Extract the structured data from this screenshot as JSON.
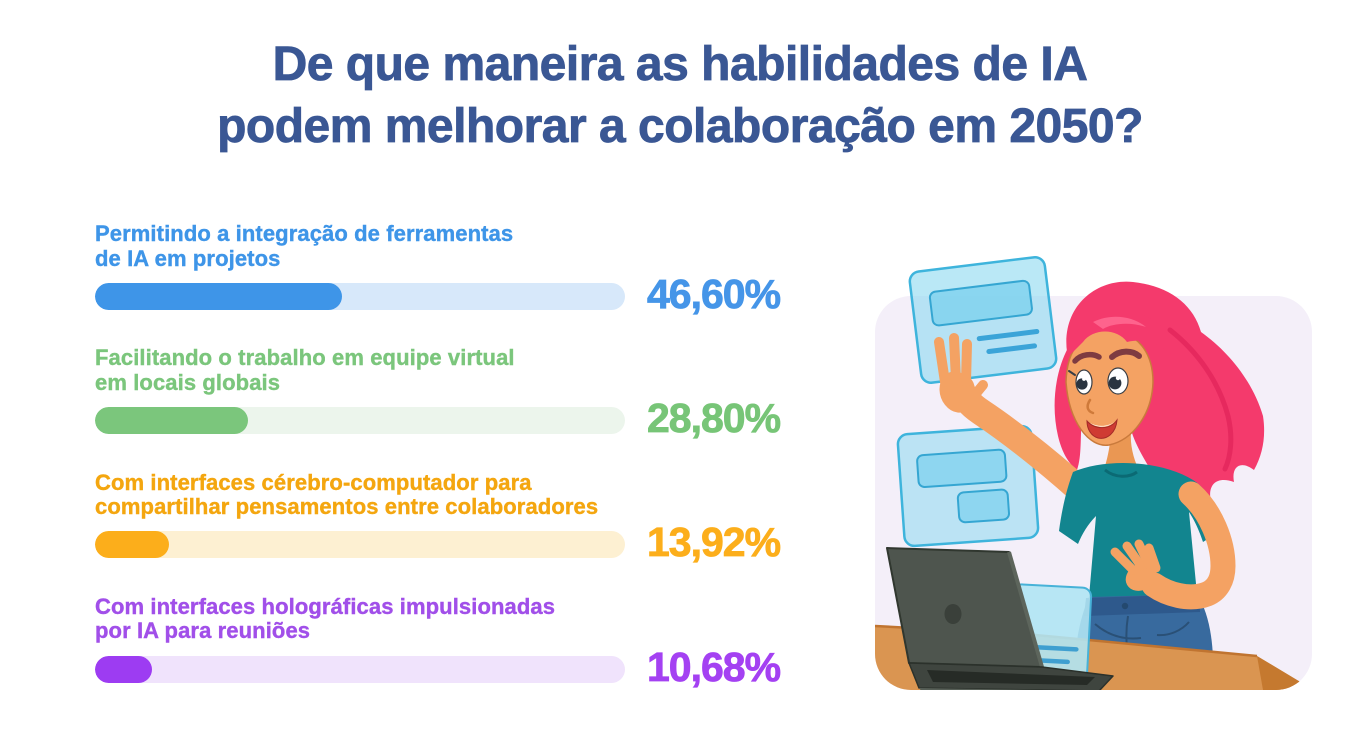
{
  "title": {
    "line1": "De que maneira as habilidades de IA",
    "line2": "podem melhorar a colaboração em 2050?",
    "full": "De que maneira as habilidades de IA podem melhorar a colaboração em 2050?",
    "color": "#3a5794"
  },
  "bars": [
    {
      "label_line1": "Permitindo a integração de ferramentas",
      "label_line2": "de IA em projetos",
      "value_label": "46,60%",
      "pct": 46.6,
      "color": "#3e95e8",
      "track_color": "#d7e8fa",
      "label_color": "#3e95e8",
      "value_color": "#4595e8"
    },
    {
      "label_line1": "Facilitando o trabalho em equipe virtual",
      "label_line2": "em locais globais",
      "value_label": "28,80%",
      "pct": 28.8,
      "color": "#7bc67c",
      "track_color": "#ecf5ec",
      "label_color": "#7bc67c",
      "value_color": "#77c577"
    },
    {
      "label_line1": "Com interfaces cérebro-computador para",
      "label_line2": "compartilhar pensamentos entre colaboradores",
      "value_label": "13,92%",
      "pct": 13.92,
      "color": "#fcae1b",
      "track_color": "#fdf0d2",
      "label_color": "#f4a60f",
      "value_color": "#fcae1b"
    },
    {
      "label_line1": "Com interfaces holográficas impulsionadas",
      "label_line2": "por IA para reuniões",
      "value_label": "10,68%",
      "pct": 10.68,
      "color": "#9d3cf2",
      "track_color": "#f0e3fc",
      "label_color": "#a14fe9",
      "value_color": "#a441f2"
    }
  ],
  "illustration": {
    "card_bg": "#f4eff9",
    "hologram_blue": "#8cd8f0",
    "hologram_stroke": "#3eb4dc",
    "hair_pink": "#f43a6c",
    "skin": "#f4a263",
    "shirt_teal": "#12858f",
    "jeans_blue": "#386a9e",
    "laptop_gray": "#4e554e",
    "desk_wood": "#da9551"
  },
  "chart_data": {
    "type": "bar",
    "orientation": "horizontal",
    "title": "De que maneira as habilidades de IA podem melhorar a colaboração em 2050?",
    "categories": [
      "Permitindo a integração de ferramentas de IA em projetos",
      "Facilitando o trabalho em equipe virtual em locais globais",
      "Com interfaces cérebro-computador para compartilhar pensamentos entre colaboradores",
      "Com interfaces holográficas impulsionadas por IA para reuniões"
    ],
    "values": [
      46.6,
      28.8,
      13.92,
      10.68
    ],
    "value_labels": [
      "46,60%",
      "28,80%",
      "13,92%",
      "10,68%"
    ],
    "bar_colors": [
      "#3e95e8",
      "#7bc67c",
      "#fcae1b",
      "#9d3cf2"
    ],
    "xlabel": "",
    "ylabel": "",
    "xlim": [
      0,
      100
    ],
    "grid": false,
    "legend": false,
    "decimal_separator": ","
  }
}
